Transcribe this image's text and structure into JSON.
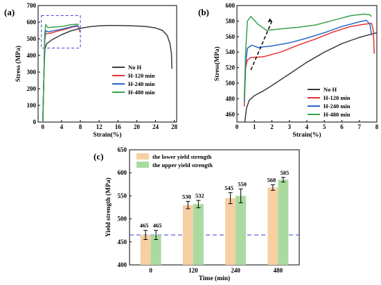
{
  "chart_data": [
    {
      "id": "a",
      "type": "line",
      "panel_label": "(a)",
      "xlabel": "Strain(%)",
      "ylabel": "Stress (MPa)",
      "xlim": [
        -1,
        28.5
      ],
      "ylim": [
        0,
        700
      ],
      "xticks": [
        0,
        4,
        8,
        12,
        16,
        20,
        24,
        28
      ],
      "yticks": [
        0,
        100,
        200,
        300,
        400,
        500,
        600,
        700
      ],
      "legend_position": "center-right",
      "inset_box": {
        "x": [
          -0.3,
          8.0
        ],
        "y": [
          445,
          640
        ]
      },
      "series": [
        {
          "name": "No H",
          "color": "#3a3a3a",
          "points": [
            [
              0,
              0
            ],
            [
              0.25,
              300
            ],
            [
              0.45,
              440
            ],
            [
              0.8,
              470
            ],
            [
              2,
              495
            ],
            [
              4,
              525
            ],
            [
              6,
              548
            ],
            [
              8,
              563
            ],
            [
              10,
              573
            ],
            [
              12,
              578
            ],
            [
              14,
              580
            ],
            [
              16,
              580
            ],
            [
              18,
              579
            ],
            [
              20,
              577
            ],
            [
              22,
              574
            ],
            [
              24,
              566
            ],
            [
              25.5,
              550
            ],
            [
              26.5,
              520
            ],
            [
              27.1,
              470
            ],
            [
              27.4,
              410
            ],
            [
              27.5,
              320
            ]
          ]
        },
        {
          "name": "H-120 min",
          "color": "#e8322e",
          "points": [
            [
              0,
              0
            ],
            [
              0.25,
              300
            ],
            [
              0.4,
              480
            ],
            [
              0.6,
              530
            ],
            [
              1.5,
              533
            ],
            [
              3,
              545
            ],
            [
              5,
              560
            ],
            [
              6.5,
              572
            ],
            [
              7.5,
              576
            ],
            [
              7.8,
              562
            ],
            [
              7.9,
              540
            ]
          ]
        },
        {
          "name": "H-240 min",
          "color": "#2a63c8",
          "points": [
            [
              0,
              0
            ],
            [
              0.25,
              300
            ],
            [
              0.4,
              500
            ],
            [
              0.65,
              548
            ],
            [
              1.2,
              542
            ],
            [
              2,
              547
            ],
            [
              4,
              558
            ],
            [
              6,
              572
            ],
            [
              7.3,
              580
            ],
            [
              7.6,
              572
            ],
            [
              7.7,
              555
            ]
          ]
        },
        {
          "name": "H-480 min",
          "color": "#36a24a",
          "points": [
            [
              0,
              0
            ],
            [
              0.25,
              300
            ],
            [
              0.4,
              520
            ],
            [
              0.6,
              585
            ],
            [
              1.1,
              568
            ],
            [
              2,
              570
            ],
            [
              4,
              574
            ],
            [
              6,
              585
            ],
            [
              7.5,
              588
            ],
            [
              7.7,
              585
            ]
          ]
        }
      ]
    },
    {
      "id": "b",
      "type": "line",
      "panel_label": "(b)",
      "xlabel": "Strain(%)",
      "ylabel": "Stress(MPa)",
      "xlim": [
        0,
        8
      ],
      "ylim": [
        450,
        600
      ],
      "xticks": [
        0,
        1,
        2,
        3,
        4,
        5,
        6,
        7,
        8
      ],
      "yticks": [
        460,
        480,
        500,
        520,
        540,
        560,
        580,
        600
      ],
      "legend_position": "bottom-right",
      "annotation": {
        "type": "dashed-arrow",
        "from": [
          0.8,
          517
        ],
        "to": [
          2.0,
          580
        ]
      },
      "series": [
        {
          "name": "No H",
          "color": "#3a3a3a",
          "points": [
            [
              0.45,
              450
            ],
            [
              0.55,
              468
            ],
            [
              0.7,
              478
            ],
            [
              1.0,
              484
            ],
            [
              1.5,
              490
            ],
            [
              2,
              497
            ],
            [
              3,
              512
            ],
            [
              4,
              527
            ],
            [
              5,
              540
            ],
            [
              6,
              551
            ],
            [
              7,
              559
            ],
            [
              8,
              565
            ]
          ]
        },
        {
          "name": "H-120 min",
          "color": "#e8322e",
          "points": [
            [
              0.42,
              470
            ],
            [
              0.5,
              520
            ],
            [
              0.6,
              530
            ],
            [
              0.8,
              533
            ],
            [
              1.5,
              534
            ],
            [
              2.5,
              540
            ],
            [
              3.5,
              549
            ],
            [
              4.5,
              557
            ],
            [
              5.5,
              566
            ],
            [
              6.5,
              573
            ],
            [
              7.3,
              576
            ],
            [
              7.7,
              577
            ],
            [
              7.8,
              568
            ],
            [
              7.85,
              538
            ]
          ]
        },
        {
          "name": "H-240 min",
          "color": "#2a63c8",
          "points": [
            [
              0.42,
              475
            ],
            [
              0.5,
              525
            ],
            [
              0.6,
              545
            ],
            [
              0.85,
              549
            ],
            [
              1.2,
              546
            ],
            [
              2,
              548
            ],
            [
              3,
              552
            ],
            [
              4,
              558
            ],
            [
              5,
              565
            ],
            [
              6,
              573
            ],
            [
              7,
              579
            ],
            [
              7.4,
              581
            ],
            [
              7.6,
              576
            ],
            [
              7.7,
              562
            ]
          ]
        },
        {
          "name": "H-480 min",
          "color": "#36a24a",
          "points": [
            [
              0.42,
              480
            ],
            [
              0.5,
              540
            ],
            [
              0.6,
              580
            ],
            [
              0.8,
              586
            ],
            [
              1.2,
              576
            ],
            [
              1.7,
              568
            ],
            [
              2.5,
              570
            ],
            [
              3.5,
              572
            ],
            [
              4.5,
              575
            ],
            [
              5.5,
              581
            ],
            [
              6.5,
              587
            ],
            [
              7.3,
              589
            ],
            [
              7.6,
              588
            ],
            [
              7.7,
              586
            ]
          ]
        }
      ]
    },
    {
      "id": "c",
      "type": "bar",
      "panel_label": "(c)",
      "xlabel": "Time (min)",
      "ylabel": "Yield strength (MPa)",
      "ylim": [
        400,
        650
      ],
      "yticks": [
        400,
        450,
        500,
        550,
        600,
        650
      ],
      "categories": [
        "0",
        "120",
        "240",
        "480"
      ],
      "reference_line": 465,
      "legend_position": "top-left",
      "series": [
        {
          "name": "the lower yield strength",
          "color": "#f6cfa3",
          "values": [
            465,
            530,
            545,
            568
          ],
          "errors": [
            10,
            8,
            12,
            6
          ],
          "labels": [
            "465",
            "530",
            "545",
            "568"
          ]
        },
        {
          "name": "the upper yield strength",
          "color": "#a9dba0",
          "values": [
            465,
            532,
            550,
            585
          ],
          "errors": [
            10,
            8,
            15,
            5
          ],
          "labels": [
            "465",
            "532",
            "550",
            "585"
          ]
        }
      ]
    }
  ]
}
